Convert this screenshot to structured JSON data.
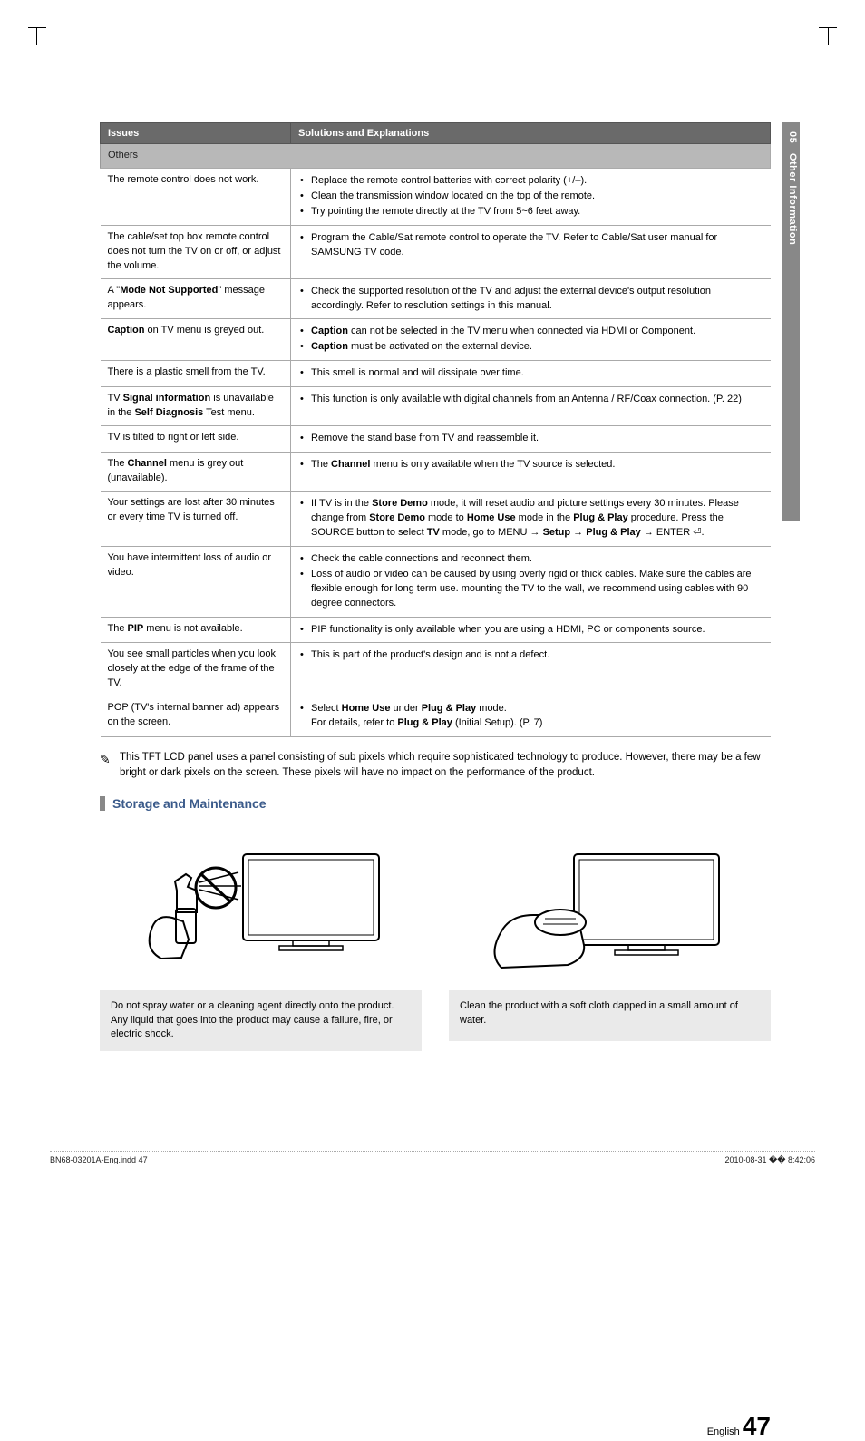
{
  "side": {
    "chapter": "05",
    "label": "Other Information"
  },
  "table": {
    "head_issue": "Issues",
    "head_sol": "Solutions and Explanations",
    "subhead": "Others",
    "rows": [
      {
        "issue_html": "The remote control does not work.",
        "sols": [
          "Replace the remote control batteries with correct polarity (+/–).",
          "Clean the transmission window located on the top of the remote.",
          "Try pointing the remote directly at the TV from 5~6 feet away."
        ]
      },
      {
        "issue_html": "The cable/set top box remote control does not turn the TV on or off, or adjust the volume.",
        "sols": [
          "Program the Cable/Sat remote control to operate the TV. Refer to Cable/Sat user manual for SAMSUNG TV code."
        ]
      },
      {
        "issue_html": "A \"<b>Mode Not Supported</b>\" message appears.",
        "sols": [
          "Check the supported resolution of the TV and adjust the external device's output resolution accordingly. Refer to resolution settings in this manual."
        ]
      },
      {
        "issue_html": "<b>Caption</b> on TV menu is greyed out.",
        "sols": [
          "<b>Caption</b> can not be selected in the TV menu when connected via HDMI or Component.",
          "<b>Caption</b> must be activated on the external device."
        ]
      },
      {
        "issue_html": "There is a plastic smell from the TV.",
        "sols": [
          "This smell is normal and will dissipate over time."
        ]
      },
      {
        "issue_html": "TV <b>Signal information</b> is unavailable in the <b>Self Diagnosis</b> Test menu.",
        "sols": [
          "This function is only available with digital channels from an Antenna / RF/Coax connection. (P. 22)"
        ]
      },
      {
        "issue_html": "TV is tilted to right or left side.",
        "sols": [
          "Remove the stand base from TV and reassemble it."
        ]
      },
      {
        "issue_html": "The <b>Channel</b> menu is grey out (unavailable).",
        "sols": [
          "The <b>Channel</b> menu is only available when the TV source is selected."
        ]
      },
      {
        "issue_html": "Your settings are lost after 30 minutes or every time TV is turned off.",
        "sols": [
          "If TV is in the <b>Store Demo</b> mode, it will reset audio and picture settings every 30 minutes. Please change from <b>Store Demo</b> mode to <b>Home Use</b> mode in the <b>Plug & Play</b> procedure. Press the SOURCE button to select <b>TV</b> mode, go to MENU → <b>Setup</b> → <b>Plug & Play</b> → ENTER ⏎."
        ]
      },
      {
        "issue_html": "You have intermittent loss of audio or video.",
        "sols": [
          "Check the cable connections and reconnect them.",
          "Loss of audio or video can be caused by using overly rigid or thick cables. Make sure the cables are flexible enough for long term use. mounting the TV to the wall, we recommend using cables with 90 degree connectors."
        ]
      },
      {
        "issue_html": "The <b>PIP</b> menu is not available.",
        "sols": [
          "PIP functionality is only available when you are using a HDMI, PC or components source."
        ]
      },
      {
        "issue_html": "You see small particles when you look closely at the edge of the frame of the TV.",
        "sols": [
          "This is part of the product's design and is not a defect."
        ]
      },
      {
        "issue_html": "POP (TV's internal banner ad) appears on the screen.",
        "sols": [
          "Select <b>Home Use</b> under <b>Plug & Play</b> mode.<br>For details, refer to <b>Plug & Play</b> (Initial Setup). (P. 7)"
        ]
      }
    ]
  },
  "note": "This TFT LCD panel uses a panel consisting of sub pixels which require sophisticated  technology to produce. However, there may be a few bright or dark pixels on the screen. These pixels will have no impact on the performance of the product.",
  "section_title": "Storage and Maintenance",
  "maint": {
    "left_caption": "Do not spray water or a cleaning agent directly onto the product. Any liquid that goes into the product may cause a failure, fire, or electric shock.",
    "right_caption": "Clean the product with a soft cloth dapped in a small amount of water."
  },
  "page_label": "English",
  "page_number": "47",
  "footer_left": "BN68-03201A-Eng.indd   47",
  "footer_right": "2010-08-31   �� 8:42:06"
}
